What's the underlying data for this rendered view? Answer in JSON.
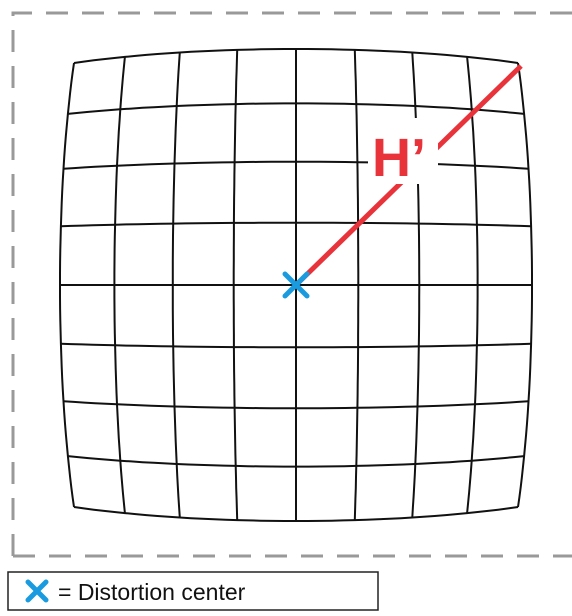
{
  "annotation": "H’",
  "legend": {
    "label": "= Distortion center"
  }
}
